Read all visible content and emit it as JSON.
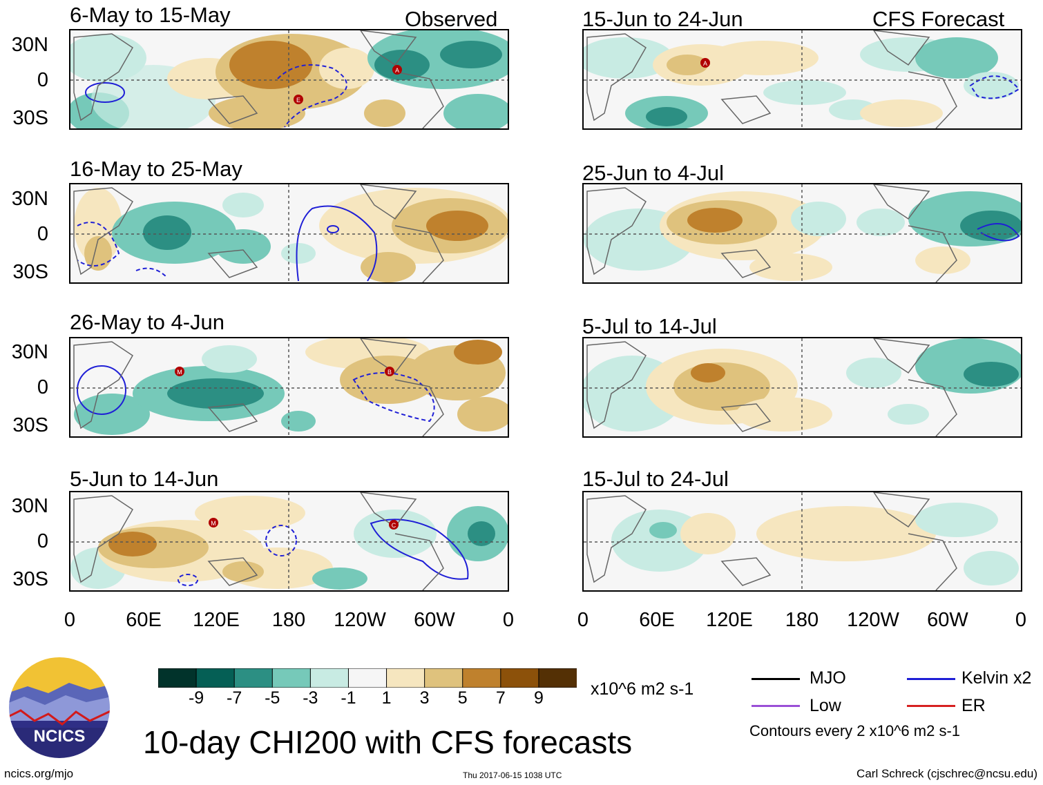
{
  "figure": {
    "title": "10-day CHI200 with CFS forecasts",
    "units": "x10^6 m2 s-1",
    "footer_left": "ncics.org/mjo",
    "footer_timestamp": "Thu 2017-06-15 1038 UTC",
    "footer_author": "Carl Schreck (cjschrec@ncsu.edu)",
    "logo_text": "NCICS"
  },
  "columns": {
    "left_tag": "Observed",
    "right_tag": "CFS Forecast"
  },
  "lat_labels": [
    "30N",
    "0",
    "30S"
  ],
  "lon_labels": [
    "0",
    "60E",
    "120E",
    "180",
    "120W",
    "60W",
    "0"
  ],
  "panels": {
    "left": [
      {
        "title": "6-May to 15-May"
      },
      {
        "title": "16-May to 25-May"
      },
      {
        "title": "26-May to 4-Jun"
      },
      {
        "title": "5-Jun to 14-Jun"
      }
    ],
    "right": [
      {
        "title": "15-Jun to 24-Jun"
      },
      {
        "title": "25-Jun to 4-Jul"
      },
      {
        "title": "5-Jul to 14-Jul"
      },
      {
        "title": "15-Jul to 24-Jul"
      }
    ]
  },
  "colorbar": {
    "labels": [
      "-9",
      "-7",
      "-5",
      "-3",
      "-1",
      "1",
      "3",
      "5",
      "7",
      "9"
    ],
    "colors": [
      "#01332b",
      "#055f55",
      "#2c8f83",
      "#76c9b9",
      "#c8ebe3",
      "#f6f6f6",
      "#f6e6bf",
      "#dfc27d",
      "#bf812d",
      "#8c510a",
      "#543005"
    ]
  },
  "legend": {
    "mjo": "MJO",
    "kelvin": "Kelvin x2",
    "low": "Low",
    "er": "ER",
    "contour_note": "Contours every 2 x10^6 m2 s-1",
    "colors": {
      "mjo": "#000000",
      "kelvin": "#1f1fd6",
      "low": "#9a4fd6",
      "er": "#d62020"
    }
  },
  "storm_markers": [
    {
      "panel": "left-0",
      "label": "A"
    },
    {
      "panel": "left-0",
      "label": "E"
    },
    {
      "panel": "left-2",
      "label": "M"
    },
    {
      "panel": "left-2",
      "label": "B"
    },
    {
      "panel": "left-3",
      "label": "M"
    },
    {
      "panel": "left-3",
      "label": "C"
    },
    {
      "panel": "right-0",
      "label": "A"
    }
  ]
}
